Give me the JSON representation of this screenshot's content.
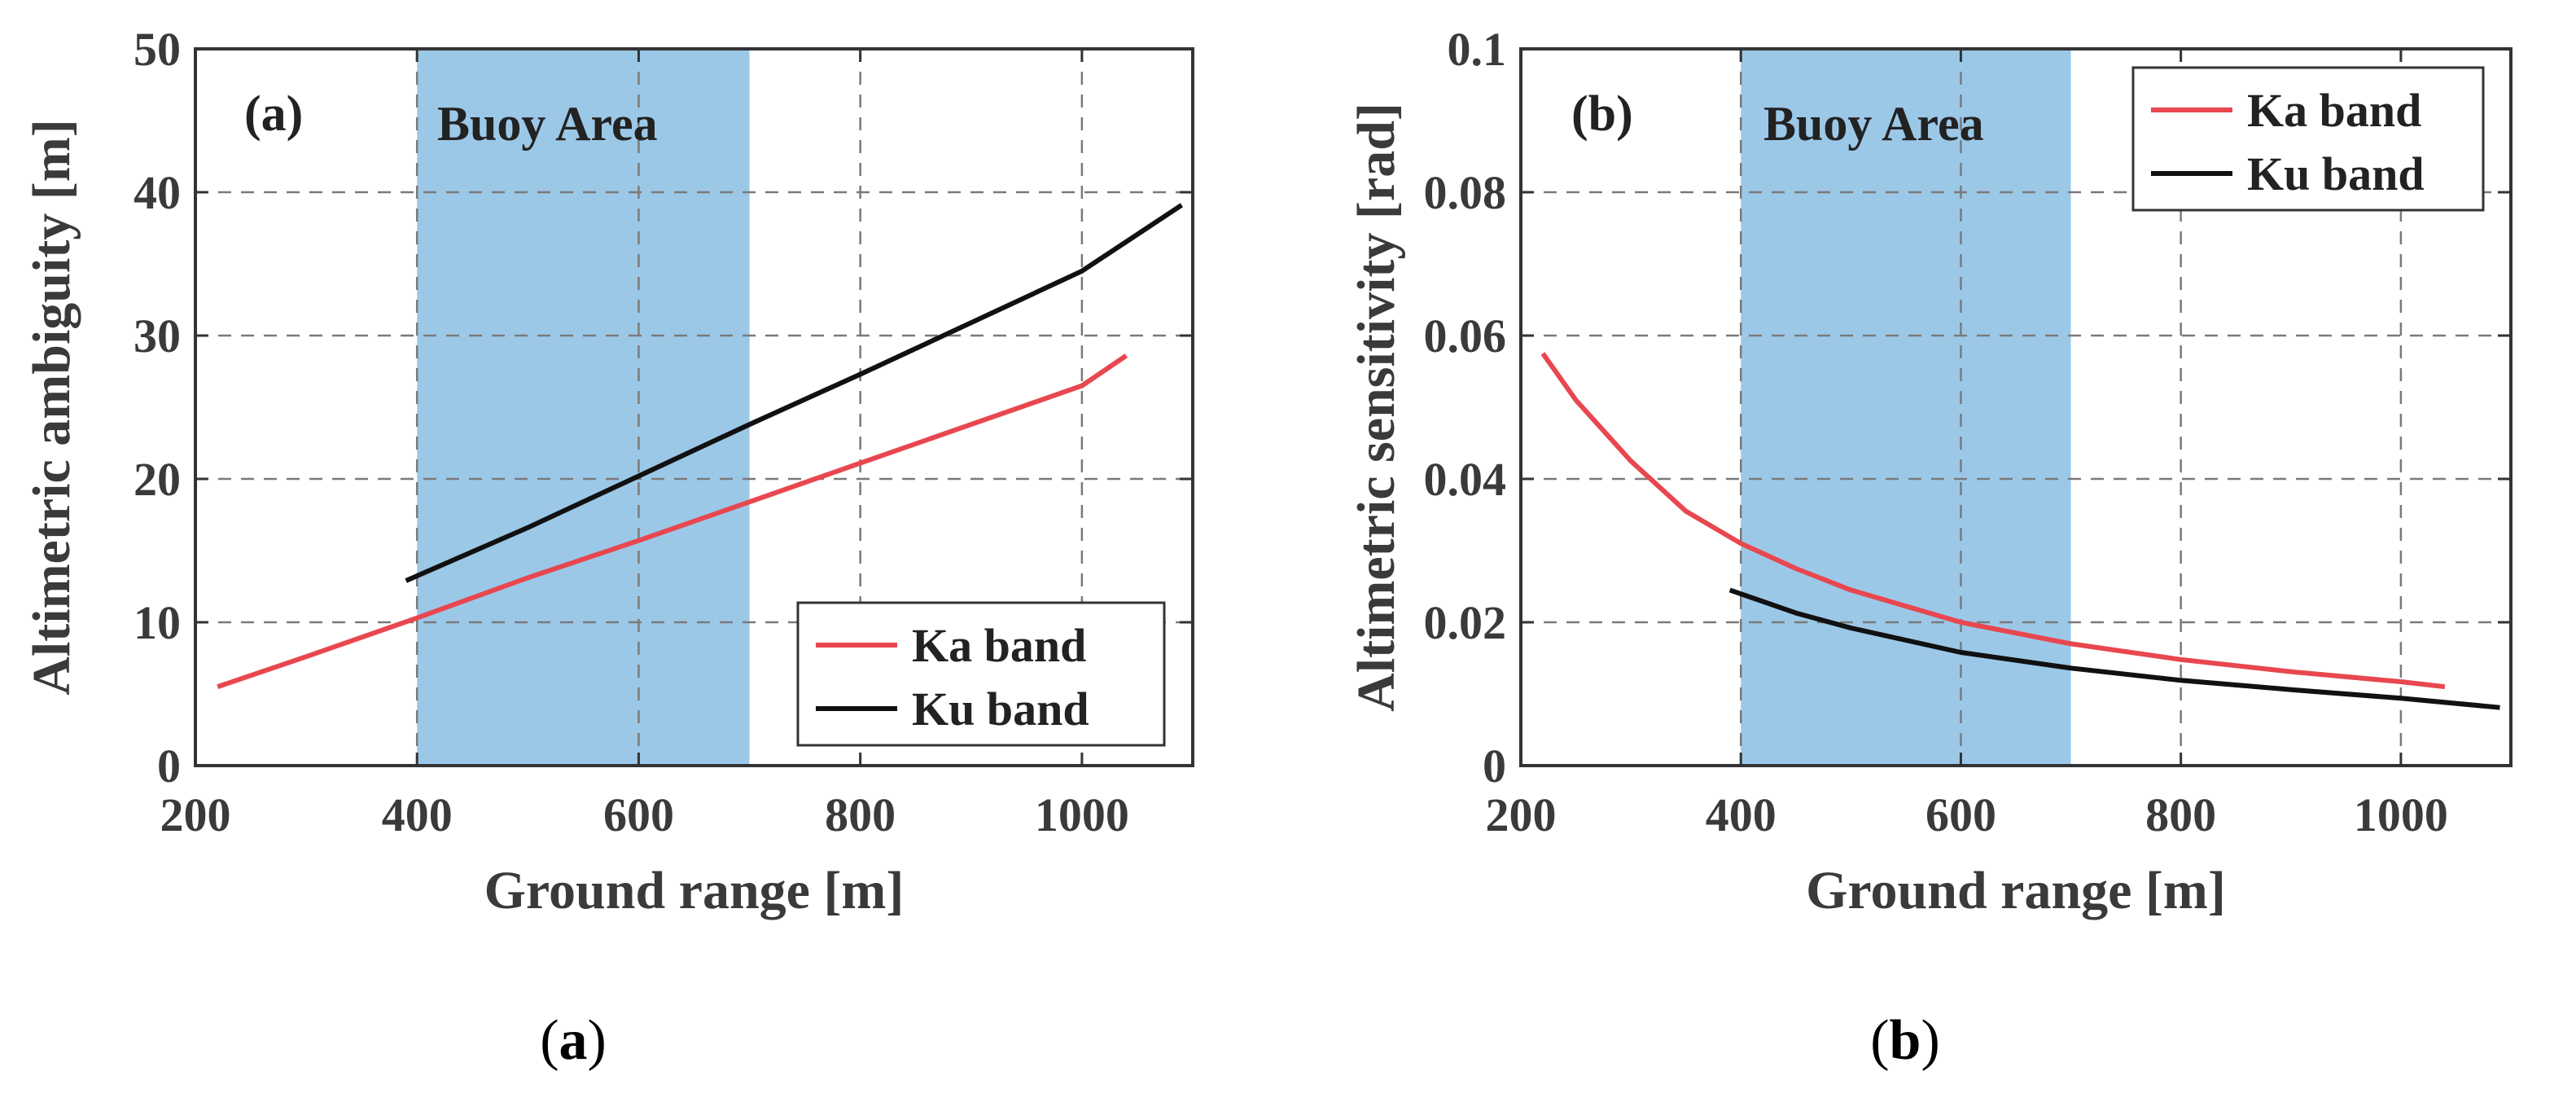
{
  "chart_data": [
    {
      "type": "line",
      "panel_label": "(a)",
      "caption_prefix": "(",
      "caption_letter": "a",
      "caption_suffix": ")",
      "xlabel": "Ground range [m]",
      "ylabel": "Altimetric ambiguity [m]",
      "xlim": [
        200,
        1100
      ],
      "ylim": [
        0,
        50
      ],
      "xticks": [
        200,
        400,
        600,
        800,
        1000
      ],
      "xtick_labels": [
        "200",
        "400",
        "600",
        "800",
        "1000"
      ],
      "yticks": [
        0,
        10,
        20,
        30,
        40,
        50
      ],
      "ytick_labels": [
        "0",
        "10",
        "20",
        "30",
        "40",
        "50"
      ],
      "grid": true,
      "legend_position": "bottom-right",
      "shaded_region": {
        "label": "Buoy Area",
        "x_start": 400,
        "x_end": 700,
        "color": "#9cc8e8"
      },
      "series": [
        {
          "name": "Ka band",
          "color": "#e8474f",
          "x": [
            220,
            300,
            400,
            500,
            600,
            700,
            800,
            900,
            1000,
            1040
          ],
          "y": [
            5.5,
            7.6,
            10.3,
            13.1,
            15.7,
            18.4,
            21.1,
            23.8,
            26.5,
            28.6
          ]
        },
        {
          "name": "Ku band",
          "color": "#111111",
          "x": [
            390,
            500,
            600,
            700,
            800,
            900,
            1000,
            1090
          ],
          "y": [
            12.9,
            16.6,
            20.2,
            23.8,
            27.3,
            30.9,
            34.5,
            39.1
          ]
        }
      ]
    },
    {
      "type": "line",
      "panel_label": "(b)",
      "caption_prefix": "(",
      "caption_letter": "b",
      "caption_suffix": ")",
      "xlabel": "Ground range [m]",
      "ylabel": "Altimetric sensitivity [rad]",
      "xlim": [
        200,
        1100
      ],
      "ylim": [
        0,
        0.1
      ],
      "xticks": [
        200,
        400,
        600,
        800,
        1000
      ],
      "xtick_labels": [
        "200",
        "400",
        "600",
        "800",
        "1000"
      ],
      "yticks": [
        0,
        0.02,
        0.04,
        0.06,
        0.08,
        0.1
      ],
      "ytick_labels": [
        "0",
        "0.02",
        "0.04",
        "0.06",
        "0.08",
        "0.1"
      ],
      "grid": true,
      "legend_position": "top-right",
      "shaded_region": {
        "label": "Buoy Area",
        "x_start": 400,
        "x_end": 700,
        "color": "#9cc8e8"
      },
      "series": [
        {
          "name": "Ka band",
          "color": "#e8474f",
          "x": [
            220,
            250,
            300,
            350,
            400,
            450,
            500,
            600,
            700,
            800,
            900,
            1000,
            1040
          ],
          "y": [
            0.0575,
            0.051,
            0.0425,
            0.0355,
            0.031,
            0.0275,
            0.0245,
            0.02,
            0.017,
            0.0148,
            0.0131,
            0.0117,
            0.011
          ]
        },
        {
          "name": "Ku band",
          "color": "#111111",
          "x": [
            390,
            450,
            500,
            600,
            700,
            800,
            900,
            1000,
            1090
          ],
          "y": [
            0.0245,
            0.0213,
            0.0192,
            0.0158,
            0.0136,
            0.0119,
            0.0106,
            0.0094,
            0.0081
          ]
        }
      ]
    }
  ]
}
